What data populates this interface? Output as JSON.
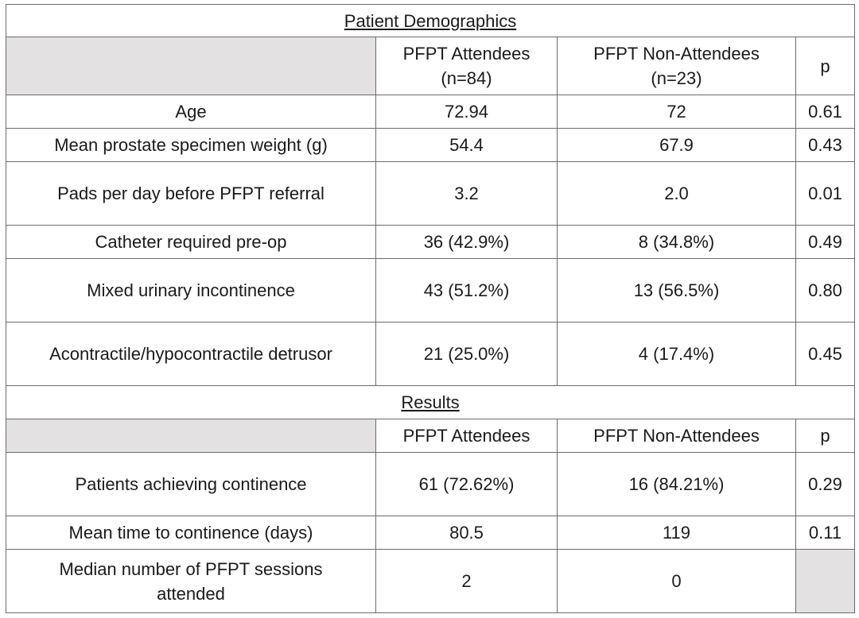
{
  "demographics": {
    "title": "Patient Demographics",
    "header": {
      "col1_line1": "PFPT Attendees",
      "col1_line2": "(n=84)",
      "col2_line1": "PFPT Non-Attendees",
      "col2_line2": "(n=23)",
      "col3": "p"
    },
    "rows": [
      {
        "label": "Age",
        "attendees": "72.94",
        "non_attendees": "72",
        "p": "0.61"
      },
      {
        "label": "Mean prostate specimen weight (g)",
        "attendees": "54.4",
        "non_attendees": "67.9",
        "p": "0.43"
      },
      {
        "label": "Pads per day before PFPT referral",
        "attendees": "3.2",
        "non_attendees": "2.0",
        "p": "0.01"
      },
      {
        "label": "Catheter required pre-op",
        "attendees": "36 (42.9%)",
        "non_attendees": "8 (34.8%)",
        "p": "0.49"
      },
      {
        "label": "Mixed urinary incontinence",
        "attendees": "43 (51.2%)",
        "non_attendees": "13 (56.5%)",
        "p": "0.80"
      },
      {
        "label": "Acontractile/hypocontractile detrusor",
        "attendees": "21 (25.0%)",
        "non_attendees": "4 (17.4%)",
        "p": "0.45"
      }
    ]
  },
  "results": {
    "title": "Results",
    "header": {
      "col1": "PFPT Attendees",
      "col2": "PFPT Non-Attendees",
      "col3": "p"
    },
    "rows": [
      {
        "label": "Patients achieving continence",
        "attendees": "61 (72.62%)",
        "non_attendees": "16 (84.21%)",
        "p": "0.29"
      },
      {
        "label": "Mean time to continence (days)",
        "attendees": "80.5",
        "non_attendees": "119",
        "p": "0.11"
      },
      {
        "label_line1": "Median number of PFPT sessions",
        "label_line2": "attended",
        "attendees": "2",
        "non_attendees": "0",
        "p": ""
      }
    ]
  },
  "colors": {
    "header_shade": "#e3e1e1",
    "border": "#6b6b6b",
    "text": "#1a1a1a"
  }
}
